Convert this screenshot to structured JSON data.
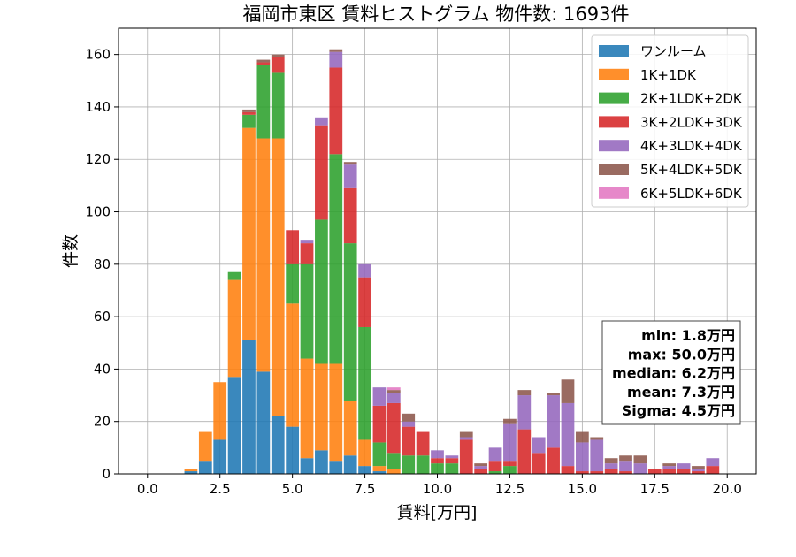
{
  "chart_data": {
    "type": "bar",
    "stacked": true,
    "title": "福岡市東区 賃料ヒストグラム 物件数: 1693件",
    "xlabel": "賃料[万円]",
    "ylabel": "件数",
    "xlim": [
      -1.0,
      21.0
    ],
    "ylim": [
      0,
      170
    ],
    "xticks": [
      0.0,
      2.5,
      5.0,
      7.5,
      10.0,
      12.5,
      15.0,
      17.5,
      20.0
    ],
    "xtick_labels": [
      "0.0",
      "2.5",
      "5.0",
      "7.5",
      "10.0",
      "12.5",
      "15.0",
      "17.5",
      "20.0"
    ],
    "yticks": [
      0,
      20,
      40,
      60,
      80,
      100,
      120,
      140,
      160
    ],
    "ytick_labels": [
      "0",
      "20",
      "40",
      "60",
      "80",
      "100",
      "120",
      "140",
      "160"
    ],
    "grid": true,
    "legend_position": "top-right",
    "bin_width": 0.5,
    "x": [
      1.5,
      2.0,
      2.5,
      3.0,
      3.5,
      4.0,
      4.5,
      5.0,
      5.5,
      6.0,
      6.5,
      7.0,
      7.5,
      8.0,
      8.5,
      9.0,
      9.5,
      10.0,
      10.5,
      11.0,
      11.5,
      12.0,
      12.5,
      13.0,
      13.5,
      14.0,
      14.5,
      15.0,
      15.5,
      16.0,
      16.5,
      17.0,
      17.5,
      18.0,
      18.5,
      19.0,
      19.5
    ],
    "series": [
      {
        "name": "ワンルーム",
        "color": "#1f77b4",
        "values": [
          1,
          5,
          13,
          37,
          51,
          39,
          22,
          18,
          6,
          9,
          5,
          7,
          3,
          1,
          0,
          0,
          0,
          0,
          0,
          0,
          0,
          0,
          0,
          0,
          0,
          0,
          0,
          0,
          0,
          0,
          0,
          0,
          0,
          0,
          0,
          0,
          0
        ]
      },
      {
        "name": "1K+1DK",
        "color": "#ff7f0e",
        "values": [
          1,
          11,
          22,
          37,
          81,
          89,
          106,
          47,
          38,
          33,
          37,
          21,
          10,
          2,
          2,
          0,
          0,
          0,
          0,
          0,
          0,
          0,
          0,
          0,
          0,
          0,
          0,
          0,
          0,
          0,
          0,
          0,
          0,
          0,
          0,
          0,
          0
        ]
      },
      {
        "name": "2K+1LDK+2DK",
        "color": "#2ca02c",
        "values": [
          0,
          0,
          0,
          3,
          5,
          28,
          25,
          15,
          36,
          55,
          80,
          60,
          43,
          9,
          6,
          7,
          7,
          4,
          4,
          0,
          0,
          1,
          3,
          0,
          0,
          0,
          0,
          0,
          0,
          0,
          0,
          0,
          0,
          0,
          0,
          0,
          0
        ]
      },
      {
        "name": "3K+2LDK+3DK",
        "color": "#d62728",
        "values": [
          0,
          0,
          0,
          0,
          1,
          1,
          6,
          13,
          8,
          36,
          33,
          21,
          19,
          14,
          19,
          11,
          9,
          2,
          2,
          13,
          2,
          4,
          2,
          17,
          8,
          10,
          3,
          1,
          1,
          2,
          1,
          0,
          2,
          2,
          2,
          1,
          3
        ]
      },
      {
        "name": "4K+3LDK+4DK",
        "color": "#9467bd",
        "values": [
          0,
          0,
          0,
          0,
          0,
          0,
          0,
          0,
          1,
          3,
          6,
          9,
          5,
          7,
          4,
          2,
          0,
          3,
          1,
          1,
          1,
          5,
          14,
          13,
          6,
          20,
          24,
          11,
          12,
          2,
          4,
          4,
          0,
          1,
          2,
          1,
          3
        ]
      },
      {
        "name": "5K+4LDK+5DK",
        "color": "#8c564b",
        "values": [
          0,
          0,
          0,
          0,
          1,
          1,
          1,
          0,
          0,
          0,
          1,
          1,
          0,
          0,
          1,
          3,
          0,
          0,
          0,
          2,
          1,
          0,
          2,
          2,
          0,
          1,
          9,
          4,
          1,
          2,
          2,
          3,
          0,
          1,
          0,
          1,
          0
        ]
      },
      {
        "name": "6K+5LDK+6DK",
        "color": "#e377c2",
        "values": [
          0,
          0,
          0,
          0,
          0,
          0,
          0,
          0,
          0,
          0,
          0,
          0,
          0,
          0,
          1,
          0,
          0,
          0,
          0,
          0,
          0,
          0,
          0,
          0,
          0,
          0,
          0,
          0,
          0,
          0,
          0,
          0,
          0,
          0,
          0,
          0,
          0
        ]
      }
    ],
    "annotations": {
      "stats": [
        "min: 1.8万円",
        "max: 50.0万円",
        "median: 6.2万円",
        "mean: 7.3万円",
        "Sigma: 4.5万円"
      ]
    }
  }
}
